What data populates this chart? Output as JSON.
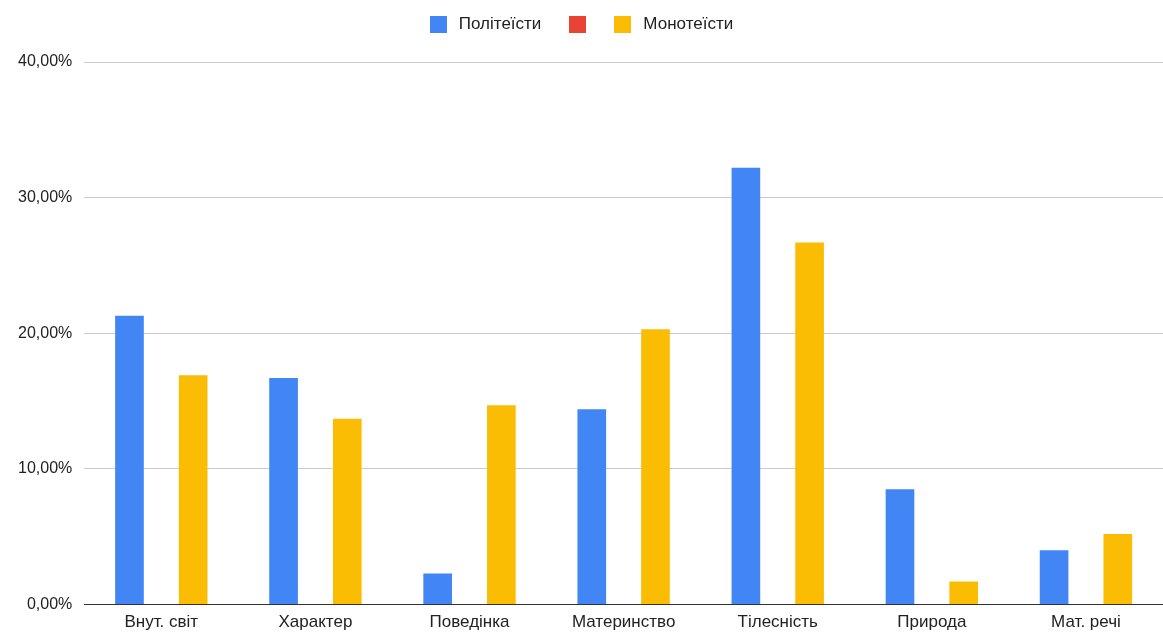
{
  "chart_data": {
    "type": "bar",
    "categories": [
      "Внут. світ",
      "Характер",
      "Поведінка",
      "Материнство",
      "Тілесність",
      "Природа",
      "Мат. речі"
    ],
    "series": [
      {
        "name": "Політеїсти",
        "color": "#4285f4",
        "values": [
          21.3,
          16.7,
          2.3,
          14.4,
          32.2,
          8.5,
          4.0
        ]
      },
      {
        "color": "#ea4335",
        "values": [
          null,
          null,
          null,
          null,
          null,
          null,
          null
        ]
      },
      {
        "name": "Монотеїсти",
        "color": "#fbbc04",
        "values": [
          16.9,
          13.7,
          14.7,
          20.3,
          26.7,
          1.7,
          5.2
        ]
      }
    ],
    "ylim": [
      0,
      40
    ],
    "yticks": [
      {
        "value": 0,
        "label": "0,00%"
      },
      {
        "value": 10,
        "label": "10,00%"
      },
      {
        "value": 20,
        "label": "20,00%"
      },
      {
        "value": 30,
        "label": "30,00%"
      },
      {
        "value": 40,
        "label": "40,00%"
      }
    ],
    "grid": "y",
    "legend": "top"
  }
}
